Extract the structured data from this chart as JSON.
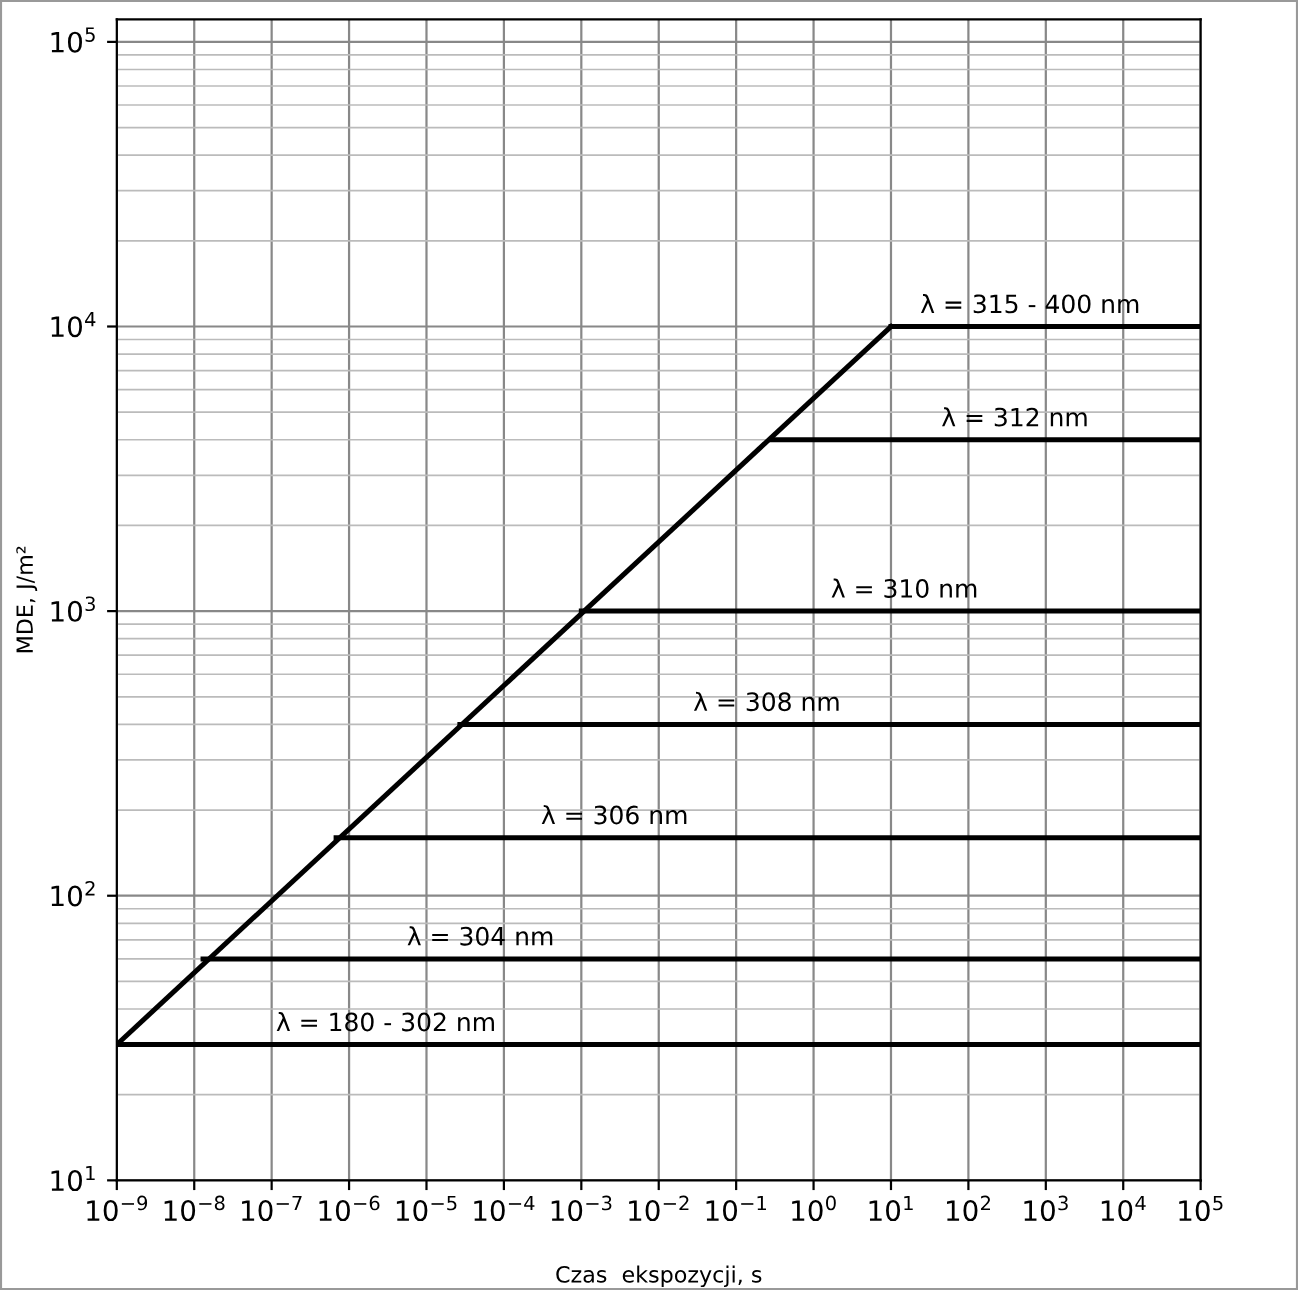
{
  "chart_data": {
    "type": "line",
    "xlabel": "Czas  ekspozycji, s",
    "ylabel": "MDE, J/m²",
    "log": "xy",
    "grid": true,
    "line_style": "solid",
    "marker": "none",
    "xlim": [
      1e-09,
      100000
    ],
    "ylim": [
      10,
      120000
    ],
    "xticks": [
      {
        "value": 1e-09,
        "label": "10$^{−9}$"
      },
      {
        "value": 1e-08,
        "label": "10$^{−8}$"
      },
      {
        "value": 1e-07,
        "label": "10$^{−7}$"
      },
      {
        "value": 1e-06,
        "label": "10$^{−6}$"
      },
      {
        "value": 1e-05,
        "label": "10$^{−5}$"
      },
      {
        "value": 0.0001,
        "label": "10$^{−4}$"
      },
      {
        "value": 0.001,
        "label": "10$^{−3}$"
      },
      {
        "value": 0.01,
        "label": "10$^{−2}$"
      },
      {
        "value": 0.1,
        "label": "10$^{−1}$"
      },
      {
        "value": 1,
        "label": "10$^{0}$"
      },
      {
        "value": 10,
        "label": "10$^{1}$"
      },
      {
        "value": 100,
        "label": "10$^{2}$"
      },
      {
        "value": 1000,
        "label": "10$^{3}$"
      },
      {
        "value": 10000,
        "label": "10$^{4}$"
      },
      {
        "value": 100000,
        "label": "10$^{5}$"
      }
    ],
    "yticks": [
      {
        "value": 10,
        "label": "10$^{1}$"
      },
      {
        "value": 100,
        "label": "10$^{2}$"
      },
      {
        "value": 1000,
        "label": "10$^{3}$"
      },
      {
        "value": 10000,
        "label": "10$^{4}$"
      },
      {
        "value": 100000,
        "label": "10$^{5}$"
      }
    ],
    "series": [
      {
        "color": "#000000",
        "x": [
          1e-09,
          10
        ],
        "values": [
          30,
          10000
        ]
      },
      {
        "color": "#000000",
        "x": [
          1e-09,
          100000
        ],
        "values": [
          30,
          30
        ]
      },
      {
        "color": "#000000",
        "x": [
          1.3e-08,
          100000
        ],
        "values": [
          60,
          60
        ]
      },
      {
        "color": "#000000",
        "x": [
          6.8e-07,
          100000
        ],
        "values": [
          160,
          160
        ]
      },
      {
        "color": "#000000",
        "x": [
          2.7e-05,
          100000
        ],
        "values": [
          400,
          400
        ]
      },
      {
        "color": "#000000",
        "x": [
          0.001,
          100000
        ],
        "values": [
          1000,
          1000
        ]
      },
      {
        "color": "#000000",
        "x": [
          0.29,
          100000
        ],
        "values": [
          4000,
          4000
        ]
      },
      {
        "color": "#000000",
        "x": [
          10,
          100000
        ],
        "values": [
          10000,
          10000
        ]
      }
    ],
    "annotations": [
      {
        "text": "λ = 180 - 302 nm",
        "x": 3e-06,
        "y": 30
      },
      {
        "text": "λ = 304 nm",
        "x": 5e-05,
        "y": 60
      },
      {
        "text": "λ = 306 nm",
        "x": 0.0027,
        "y": 160
      },
      {
        "text": "λ = 308 nm",
        "x": 0.25,
        "y": 400
      },
      {
        "text": "λ = 310 nm",
        "x": 15,
        "y": 1000
      },
      {
        "text": "λ = 312 nm",
        "x": 400,
        "y": 4000
      },
      {
        "text": "λ = 315 - 400 nm",
        "x": 630,
        "y": 10000
      }
    ]
  }
}
